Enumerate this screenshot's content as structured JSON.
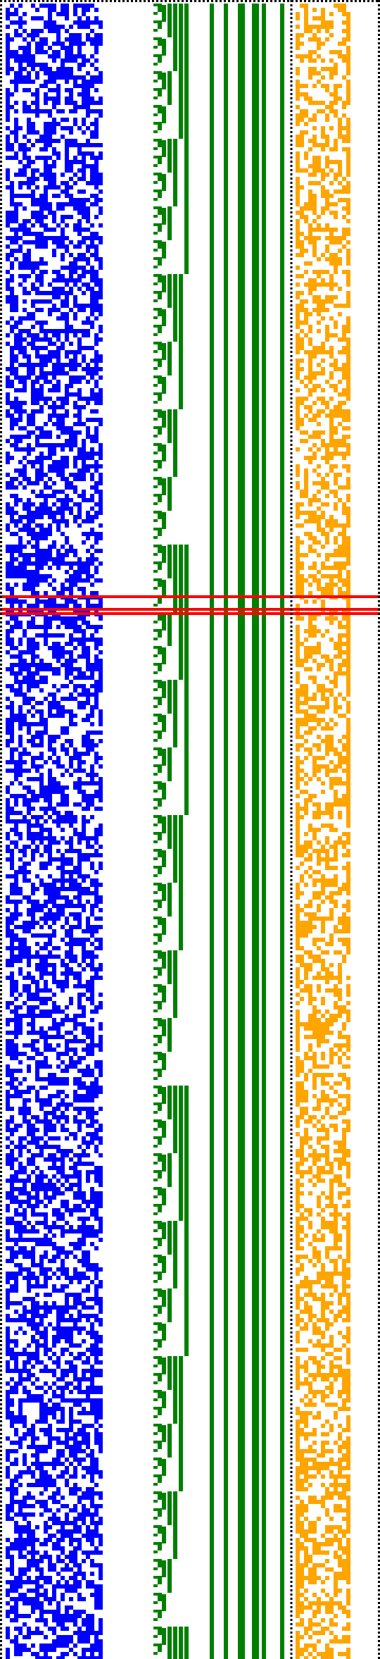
{
  "colors": {
    "background": "#ffffff",
    "blue": "#0000ff",
    "green": "#008000",
    "orange": "#ffa500",
    "red": "#ff0000",
    "black": "#000000"
  },
  "grid": {
    "rows": 392,
    "bits_columns": 23,
    "orange_columns": 13
  },
  "green_columns_on": [
    true,
    true,
    true,
    true,
    true,
    true,
    true,
    true,
    true,
    false,
    false,
    true,
    false,
    true,
    false,
    true,
    false,
    true,
    false,
    false,
    true,
    false
  ],
  "highlight_rows": [
    140,
    143,
    144
  ]
}
